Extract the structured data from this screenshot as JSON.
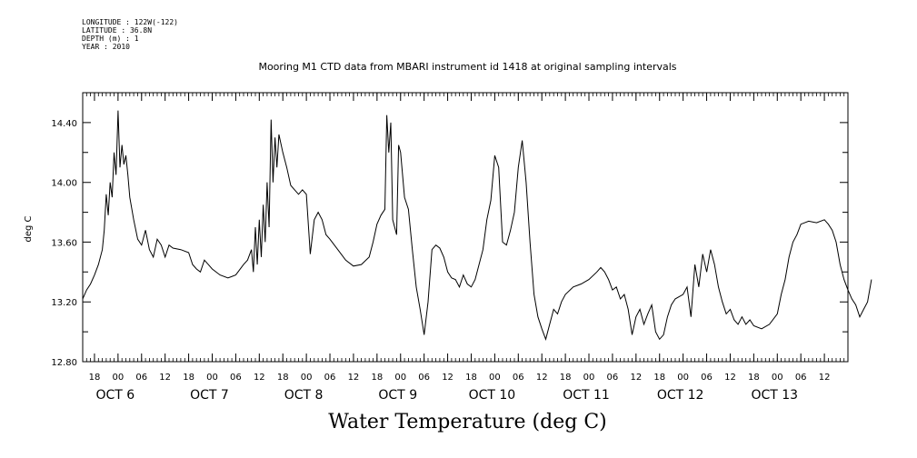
{
  "header": {
    "longitude": "LONGITUDE : 122W(-122)",
    "latitude": "LATITUDE : 36.8N",
    "depth": "DEPTH (m) : 1",
    "year": "YEAR : 2010"
  },
  "chart_data": {
    "type": "line",
    "title": "Mooring M1 CTD data from MBARI instrument id 1418 at original sampling intervals",
    "xlabel": "Water Temperature (deg C)",
    "ylabel": "deg C",
    "ylim": [
      12.8,
      14.6
    ],
    "xlim": [
      "2010-10-05T15:00",
      "2010-10-13T18:00"
    ],
    "y_ticks": [
      "12.80",
      "13.20",
      "13.60",
      "14.00",
      "14.40"
    ],
    "x_hour_ticks": [
      {
        "t": "2010-10-05T18:00",
        "label": "18"
      },
      {
        "t": "2010-10-06T00:00",
        "label": "00"
      },
      {
        "t": "2010-10-06T06:00",
        "label": "06"
      },
      {
        "t": "2010-10-06T12:00",
        "label": "12"
      },
      {
        "t": "2010-10-06T18:00",
        "label": "18"
      },
      {
        "t": "2010-10-07T00:00",
        "label": "00"
      },
      {
        "t": "2010-10-07T06:00",
        "label": "06"
      },
      {
        "t": "2010-10-07T12:00",
        "label": "12"
      },
      {
        "t": "2010-10-07T18:00",
        "label": "18"
      },
      {
        "t": "2010-10-08T00:00",
        "label": "00"
      },
      {
        "t": "2010-10-08T06:00",
        "label": "06"
      },
      {
        "t": "2010-10-08T12:00",
        "label": "12"
      },
      {
        "t": "2010-10-08T18:00",
        "label": "18"
      },
      {
        "t": "2010-10-09T00:00",
        "label": "00"
      },
      {
        "t": "2010-10-09T06:00",
        "label": "06"
      },
      {
        "t": "2010-10-09T12:00",
        "label": "12"
      },
      {
        "t": "2010-10-09T18:00",
        "label": "18"
      },
      {
        "t": "2010-10-10T00:00",
        "label": "00"
      },
      {
        "t": "2010-10-10T06:00",
        "label": "06"
      },
      {
        "t": "2010-10-10T12:00",
        "label": "12"
      },
      {
        "t": "2010-10-10T18:00",
        "label": "18"
      },
      {
        "t": "2010-10-11T00:00",
        "label": "00"
      },
      {
        "t": "2010-10-11T06:00",
        "label": "06"
      },
      {
        "t": "2010-10-11T12:00",
        "label": "12"
      },
      {
        "t": "2010-10-11T18:00",
        "label": "18"
      },
      {
        "t": "2010-10-12T00:00",
        "label": "00"
      },
      {
        "t": "2010-10-12T06:00",
        "label": "06"
      },
      {
        "t": "2010-10-12T12:00",
        "label": "12"
      },
      {
        "t": "2010-10-12T18:00",
        "label": "18"
      },
      {
        "t": "2010-10-13T00:00",
        "label": "00"
      },
      {
        "t": "2010-10-13T06:00",
        "label": "06"
      },
      {
        "t": "2010-10-13T12:00",
        "label": "12"
      }
    ],
    "x_day_labels": [
      {
        "t": "2010-10-06T00:00",
        "label": "OCT  6"
      },
      {
        "t": "2010-10-07T00:00",
        "label": "OCT  7"
      },
      {
        "t": "2010-10-08T00:00",
        "label": "OCT  8"
      },
      {
        "t": "2010-10-09T00:00",
        "label": "OCT  9"
      },
      {
        "t": "2010-10-10T00:00",
        "label": "OCT 10"
      },
      {
        "t": "2010-10-11T00:00",
        "label": "OCT 11"
      },
      {
        "t": "2010-10-12T00:00",
        "label": "OCT 12"
      },
      {
        "t": "2010-10-13T00:00",
        "label": "OCT 13"
      }
    ],
    "series": [
      {
        "color": "#000000",
        "points": [
          [
            "2010-10-05T15:00",
            13.22
          ],
          [
            "2010-10-05T16:00",
            13.28
          ],
          [
            "2010-10-05T17:00",
            13.32
          ],
          [
            "2010-10-05T18:00",
            13.38
          ],
          [
            "2010-10-05T19:00",
            13.45
          ],
          [
            "2010-10-05T20:00",
            13.55
          ],
          [
            "2010-10-05T20:30",
            13.68
          ],
          [
            "2010-10-05T21:00",
            13.92
          ],
          [
            "2010-10-05T21:30",
            13.78
          ],
          [
            "2010-10-05T22:00",
            14.0
          ],
          [
            "2010-10-05T22:30",
            13.9
          ],
          [
            "2010-10-05T23:00",
            14.2
          ],
          [
            "2010-10-05T23:30",
            14.05
          ],
          [
            "2010-10-06T00:00",
            14.48
          ],
          [
            "2010-10-06T00:30",
            14.1
          ],
          [
            "2010-10-06T01:00",
            14.25
          ],
          [
            "2010-10-06T01:30",
            14.12
          ],
          [
            "2010-10-06T02:00",
            14.18
          ],
          [
            "2010-10-06T02:30",
            14.05
          ],
          [
            "2010-10-06T03:00",
            13.9
          ],
          [
            "2010-10-06T04:00",
            13.75
          ],
          [
            "2010-10-06T05:00",
            13.62
          ],
          [
            "2010-10-06T06:00",
            13.58
          ],
          [
            "2010-10-06T07:00",
            13.68
          ],
          [
            "2010-10-06T08:00",
            13.55
          ],
          [
            "2010-10-06T09:00",
            13.5
          ],
          [
            "2010-10-06T10:00",
            13.62
          ],
          [
            "2010-10-06T11:00",
            13.58
          ],
          [
            "2010-10-06T12:00",
            13.5
          ],
          [
            "2010-10-06T13:00",
            13.58
          ],
          [
            "2010-10-06T14:00",
            13.56
          ],
          [
            "2010-10-06T16:00",
            13.55
          ],
          [
            "2010-10-06T18:00",
            13.53
          ],
          [
            "2010-10-06T19:00",
            13.45
          ],
          [
            "2010-10-06T20:00",
            13.42
          ],
          [
            "2010-10-06T21:00",
            13.4
          ],
          [
            "2010-10-06T22:00",
            13.48
          ],
          [
            "2010-10-06T23:00",
            13.45
          ],
          [
            "2010-10-07T00:00",
            13.42
          ],
          [
            "2010-10-07T02:00",
            13.38
          ],
          [
            "2010-10-07T04:00",
            13.36
          ],
          [
            "2010-10-07T06:00",
            13.38
          ],
          [
            "2010-10-07T08:00",
            13.45
          ],
          [
            "2010-10-07T09:00",
            13.48
          ],
          [
            "2010-10-07T10:00",
            13.55
          ],
          [
            "2010-10-07T10:30",
            13.4
          ],
          [
            "2010-10-07T11:00",
            13.7
          ],
          [
            "2010-10-07T11:30",
            13.45
          ],
          [
            "2010-10-07T12:00",
            13.75
          ],
          [
            "2010-10-07T12:30",
            13.5
          ],
          [
            "2010-10-07T13:00",
            13.85
          ],
          [
            "2010-10-07T13:30",
            13.6
          ],
          [
            "2010-10-07T14:00",
            14.0
          ],
          [
            "2010-10-07T14:30",
            13.7
          ],
          [
            "2010-10-07T15:00",
            14.42
          ],
          [
            "2010-10-07T15:30",
            14.0
          ],
          [
            "2010-10-07T16:00",
            14.3
          ],
          [
            "2010-10-07T16:30",
            14.1
          ],
          [
            "2010-10-07T17:00",
            14.32
          ],
          [
            "2010-10-07T18:00",
            14.2
          ],
          [
            "2010-10-07T19:00",
            14.1
          ],
          [
            "2010-10-07T20:00",
            13.98
          ],
          [
            "2010-10-07T21:00",
            13.95
          ],
          [
            "2010-10-07T22:00",
            13.92
          ],
          [
            "2010-10-07T23:00",
            13.95
          ],
          [
            "2010-10-08T00:00",
            13.92
          ],
          [
            "2010-10-08T01:00",
            13.52
          ],
          [
            "2010-10-08T02:00",
            13.75
          ],
          [
            "2010-10-08T03:00",
            13.8
          ],
          [
            "2010-10-08T04:00",
            13.75
          ],
          [
            "2010-10-08T05:00",
            13.65
          ],
          [
            "2010-10-08T06:00",
            13.62
          ],
          [
            "2010-10-08T08:00",
            13.55
          ],
          [
            "2010-10-08T10:00",
            13.48
          ],
          [
            "2010-10-08T12:00",
            13.44
          ],
          [
            "2010-10-08T14:00",
            13.45
          ],
          [
            "2010-10-08T16:00",
            13.5
          ],
          [
            "2010-10-08T17:00",
            13.6
          ],
          [
            "2010-10-08T18:00",
            13.72
          ],
          [
            "2010-10-08T19:00",
            13.78
          ],
          [
            "2010-10-08T20:00",
            13.82
          ],
          [
            "2010-10-08T20:30",
            14.45
          ],
          [
            "2010-10-08T21:00",
            14.2
          ],
          [
            "2010-10-08T21:30",
            14.4
          ],
          [
            "2010-10-08T22:00",
            13.75
          ],
          [
            "2010-10-08T23:00",
            13.65
          ],
          [
            "2010-10-08T23:30",
            14.25
          ],
          [
            "2010-10-09T00:00",
            14.2
          ],
          [
            "2010-10-09T01:00",
            13.9
          ],
          [
            "2010-10-09T02:00",
            13.82
          ],
          [
            "2010-10-09T03:00",
            13.55
          ],
          [
            "2010-10-09T04:00",
            13.3
          ],
          [
            "2010-10-09T05:00",
            13.15
          ],
          [
            "2010-10-09T06:00",
            12.98
          ],
          [
            "2010-10-09T07:00",
            13.2
          ],
          [
            "2010-10-09T08:00",
            13.55
          ],
          [
            "2010-10-09T09:00",
            13.58
          ],
          [
            "2010-10-09T10:00",
            13.56
          ],
          [
            "2010-10-09T11:00",
            13.5
          ],
          [
            "2010-10-09T12:00",
            13.4
          ],
          [
            "2010-10-09T13:00",
            13.36
          ],
          [
            "2010-10-09T14:00",
            13.35
          ],
          [
            "2010-10-09T15:00",
            13.3
          ],
          [
            "2010-10-09T16:00",
            13.38
          ],
          [
            "2010-10-09T17:00",
            13.32
          ],
          [
            "2010-10-09T18:00",
            13.3
          ],
          [
            "2010-10-09T19:00",
            13.35
          ],
          [
            "2010-10-09T20:00",
            13.45
          ],
          [
            "2010-10-09T21:00",
            13.55
          ],
          [
            "2010-10-09T22:00",
            13.75
          ],
          [
            "2010-10-09T23:00",
            13.88
          ],
          [
            "2010-10-10T00:00",
            14.18
          ],
          [
            "2010-10-10T01:00",
            14.1
          ],
          [
            "2010-10-10T02:00",
            13.6
          ],
          [
            "2010-10-10T03:00",
            13.58
          ],
          [
            "2010-10-10T04:00",
            13.68
          ],
          [
            "2010-10-10T05:00",
            13.8
          ],
          [
            "2010-10-10T06:00",
            14.1
          ],
          [
            "2010-10-10T07:00",
            14.28
          ],
          [
            "2010-10-10T08:00",
            14.0
          ],
          [
            "2010-10-10T09:00",
            13.6
          ],
          [
            "2010-10-10T10:00",
            13.25
          ],
          [
            "2010-10-10T11:00",
            13.1
          ],
          [
            "2010-10-10T12:00",
            13.02
          ],
          [
            "2010-10-10T13:00",
            12.95
          ],
          [
            "2010-10-10T14:00",
            13.05
          ],
          [
            "2010-10-10T15:00",
            13.15
          ],
          [
            "2010-10-10T16:00",
            13.12
          ],
          [
            "2010-10-10T17:00",
            13.2
          ],
          [
            "2010-10-10T18:00",
            13.25
          ],
          [
            "2010-10-10T20:00",
            13.3
          ],
          [
            "2010-10-10T22:00",
            13.32
          ],
          [
            "2010-10-11T00:00",
            13.35
          ],
          [
            "2010-10-11T02:00",
            13.4
          ],
          [
            "2010-10-11T03:00",
            13.43
          ],
          [
            "2010-10-11T04:00",
            13.4
          ],
          [
            "2010-10-11T05:00",
            13.35
          ],
          [
            "2010-10-11T06:00",
            13.28
          ],
          [
            "2010-10-11T07:00",
            13.3
          ],
          [
            "2010-10-11T08:00",
            13.22
          ],
          [
            "2010-10-11T09:00",
            13.25
          ],
          [
            "2010-10-11T10:00",
            13.15
          ],
          [
            "2010-10-11T11:00",
            12.98
          ],
          [
            "2010-10-11T12:00",
            13.1
          ],
          [
            "2010-10-11T13:00",
            13.15
          ],
          [
            "2010-10-11T14:00",
            13.05
          ],
          [
            "2010-10-11T15:00",
            13.12
          ],
          [
            "2010-10-11T16:00",
            13.18
          ],
          [
            "2010-10-11T17:00",
            13.0
          ],
          [
            "2010-10-11T18:00",
            12.95
          ],
          [
            "2010-10-11T19:00",
            12.98
          ],
          [
            "2010-10-11T20:00",
            13.1
          ],
          [
            "2010-10-11T21:00",
            13.18
          ],
          [
            "2010-10-11T22:00",
            13.22
          ],
          [
            "2010-10-12T00:00",
            13.25
          ],
          [
            "2010-10-12T01:00",
            13.3
          ],
          [
            "2010-10-12T02:00",
            13.1
          ],
          [
            "2010-10-12T03:00",
            13.45
          ],
          [
            "2010-10-12T04:00",
            13.3
          ],
          [
            "2010-10-12T05:00",
            13.52
          ],
          [
            "2010-10-12T06:00",
            13.4
          ],
          [
            "2010-10-12T07:00",
            13.55
          ],
          [
            "2010-10-12T08:00",
            13.45
          ],
          [
            "2010-10-12T09:00",
            13.3
          ],
          [
            "2010-10-12T10:00",
            13.2
          ],
          [
            "2010-10-12T11:00",
            13.12
          ],
          [
            "2010-10-12T12:00",
            13.15
          ],
          [
            "2010-10-12T13:00",
            13.08
          ],
          [
            "2010-10-12T14:00",
            13.05
          ],
          [
            "2010-10-12T15:00",
            13.1
          ],
          [
            "2010-10-12T16:00",
            13.05
          ],
          [
            "2010-10-12T17:00",
            13.08
          ],
          [
            "2010-10-12T18:00",
            13.04
          ],
          [
            "2010-10-12T20:00",
            13.02
          ],
          [
            "2010-10-12T22:00",
            13.05
          ],
          [
            "2010-10-13T00:00",
            13.12
          ],
          [
            "2010-10-13T01:00",
            13.25
          ],
          [
            "2010-10-13T02:00",
            13.35
          ],
          [
            "2010-10-13T03:00",
            13.5
          ],
          [
            "2010-10-13T04:00",
            13.6
          ],
          [
            "2010-10-13T05:00",
            13.65
          ],
          [
            "2010-10-13T06:00",
            13.72
          ],
          [
            "2010-10-13T08:00",
            13.74
          ],
          [
            "2010-10-13T10:00",
            13.73
          ],
          [
            "2010-10-13T12:00",
            13.75
          ],
          [
            "2010-10-13T13:00",
            13.72
          ],
          [
            "2010-10-13T14:00",
            13.68
          ],
          [
            "2010-10-13T15:00",
            13.6
          ],
          [
            "2010-10-13T16:00",
            13.45
          ],
          [
            "2010-10-13T17:00",
            13.35
          ],
          [
            "2010-10-13T18:00",
            13.28
          ],
          [
            "2010-10-13T19:00",
            13.22
          ],
          [
            "2010-10-13T20:00",
            13.18
          ],
          [
            "2010-10-13T21:00",
            13.1
          ],
          [
            "2010-10-13T22:00",
            13.15
          ],
          [
            "2010-10-13T23:00",
            13.2
          ],
          [
            "2010-10-14T00:00",
            13.35
          ]
        ]
      }
    ]
  }
}
